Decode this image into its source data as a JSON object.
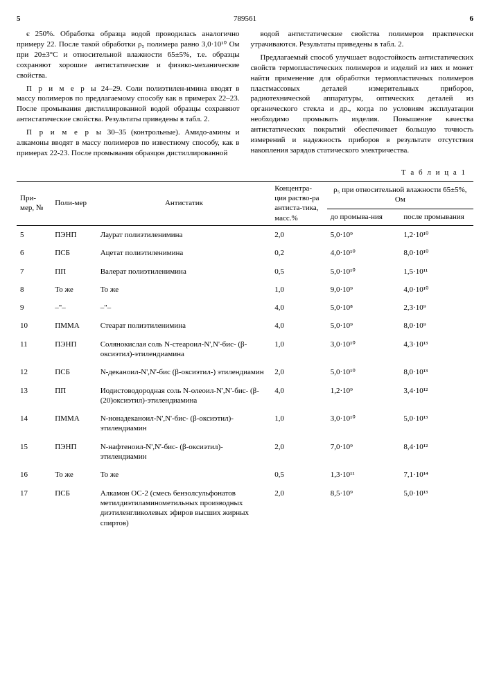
{
  "pageLeft": "5",
  "docNumber": "789561",
  "pageRight": "6",
  "leftCol": {
    "p1": "є 250%. Обработка образца водой проводилась аналогично примеру 22. После такой обработки ρ₅ полимера равно 3,0·10¹⁰ Ом при 20±3°С и относительной влажности 65±5%, т.е. образцы сохраняют хорошие антистатические и физико-механические свойства.",
    "p2a": "П р и м е р ы",
    "p2b": " 24–29. Соли полиэтилен-имина вводят в массу полимеров по предлагаемому способу как в примерах 22–23. После промывания дистиллированной водой образцы сохраняют антистатические свойства. Результаты приведены в табл. 2.",
    "p3a": "П р и м е р ы",
    "p3b": " 30–35 (контрольные). Амидо-амины и алкамоны вводят в массу полимеров по известному способу, как в примерах 22-23. После промывания образцов дистиллированной"
  },
  "rightCol": {
    "p1": "водой антистатические свойства полимеров практически утрачиваются. Результаты приведены в табл. 2.",
    "p2": "Предлагаемый способ улучшает водостойкость антистатических свойств термопластических полимеров и изделий из них и может найти применение для обработки термопластичных полимеров пластмассовых деталей измерительных приборов, радиотехнической аппаратуры, оптических деталей из органического стекла и др., когда по условиям эксплуатации необходимо промывать изделия. Повышение качества антистатических покрытий обеспечивает большую точность измерений и надежность приборов в результате отсутствия накопления зарядов статического электричества."
  },
  "tableLabel": "Т а б л и ц а 1",
  "headers": {
    "col1": "При-мер, №",
    "col2": "Поли-мер",
    "col3": "Антистатик",
    "col4": "Концентра-ция раство-ра антиста-тика, масс.%",
    "col5": "ρ₅ при относительной влажности 65±5%, Ом",
    "col5a": "до промыва-ния",
    "col5b": "после промывания"
  },
  "rows": [
    {
      "n": "5",
      "pol": "ПЭНП",
      "anti": "Лаурат полиэтиленимина",
      "conc": "2,0",
      "before": "5,0·10⁹",
      "after": "1,2·10¹⁰"
    },
    {
      "n": "6",
      "pol": "ПСБ",
      "anti": "Ацетат полиэтиленимина",
      "conc": "0,2",
      "before": "4,0·10¹⁰",
      "after": "8,0·10¹⁰"
    },
    {
      "n": "7",
      "pol": "ПП",
      "anti": "Валерат полиэтиленимина",
      "conc": "0,5",
      "before": "5,0·10¹⁰",
      "after": "1,5·10¹¹"
    },
    {
      "n": "8",
      "pol": "То же",
      "anti": "То же",
      "conc": "1,0",
      "before": "9,0·10⁹",
      "after": "4,0·10¹⁰"
    },
    {
      "n": "9",
      "pol": "–\"–",
      "anti": "–\"–",
      "conc": "4,0",
      "before": "5,0·10⁸",
      "after": "2,3·10⁹"
    },
    {
      "n": "10",
      "pol": "ПММА",
      "anti": "Стеарат полиэтиленимина",
      "conc": "4,0",
      "before": "5,0·10⁹",
      "after": "8,0·10⁹"
    },
    {
      "n": "11",
      "pol": "ПЭНП",
      "anti": "Солянокислая соль N-стеароил-N',N'-бис- (β-оксиэтил)-этилендиамина",
      "conc": "1,0",
      "before": "3,0·10¹⁰",
      "after": "4,3·10¹³"
    },
    {
      "n": "12",
      "pol": "ПСБ",
      "anti": "N-деканоил-N',N'-бис (β-оксиэтил-) этилендиамин",
      "conc": "2,0",
      "before": "5,0·10¹⁰",
      "after": "8,0·10¹³"
    },
    {
      "n": "13",
      "pol": "ПП",
      "anti": "Иодистоводородная соль N-олеоил-N',N'-бис- (β-(20)оксиэтил)-этилендиамина",
      "conc": "4,0",
      "before": "1,2·10⁹",
      "after": "3,4·10¹²"
    },
    {
      "n": "14",
      "pol": "ПММА",
      "anti": "N-нонадеканоил-N',N'-бис- (β-оксиэтил)-этилендиамин",
      "conc": "1,0",
      "before": "3,0·10¹⁰",
      "after": "5,0·10¹³"
    },
    {
      "n": "15",
      "pol": "ПЭНП",
      "anti": "N-нафтеноил-N',N'-бис- (β-оксиэтил)-этилендиамин",
      "conc": "2,0",
      "before": "7,0·10⁹",
      "after": "8,4·10¹²"
    },
    {
      "n": "16",
      "pol": "То же",
      "anti": "То же",
      "conc": "0,5",
      "before": "1,3·10¹¹",
      "after": "7,1·10¹⁴"
    },
    {
      "n": "17",
      "pol": "ПСБ",
      "anti": "Алкамон ОС-2 (смесь бензолсульфонатов метилдиэтиламинометильных производных диэтиленгликолевых эфиров высших жирных спиртов)",
      "conc": "2,0",
      "before": "8,5·10⁹",
      "after": "5,0·10¹³"
    }
  ]
}
